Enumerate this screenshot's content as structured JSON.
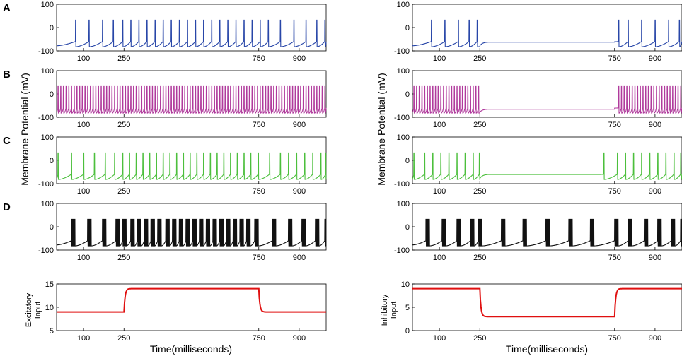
{
  "chart_data": {
    "type": "line",
    "panel_letters": [
      "A",
      "B",
      "C",
      "D"
    ],
    "colors": {
      "A": "#2846a8",
      "B": "#b03a9c",
      "C": "#4cbf3c",
      "D": "#111111",
      "input": "#e01010"
    },
    "membrane": {
      "ylabel": "Membrane Potential (mV)",
      "ylim": [
        -100,
        100
      ],
      "yticks": [
        -100,
        0,
        100
      ],
      "xlim": [
        0,
        1000
      ],
      "xticks": [
        100,
        250,
        750,
        900
      ]
    },
    "input_axes": {
      "xlabel": "Time(milliseconds)",
      "xlim": [
        0,
        1000
      ],
      "xticks": [
        100,
        250,
        750,
        900
      ]
    },
    "left": {
      "rows": [
        {
          "name": "A",
          "spike_times": [
            70,
            120,
            170,
            210,
            245,
            275,
            305,
            335,
            365,
            395,
            425,
            455,
            485,
            515,
            545,
            575,
            605,
            635,
            665,
            695,
            725,
            755,
            785,
            830,
            880,
            925,
            965,
            995
          ]
        },
        {
          "name": "B",
          "spike_period": 10,
          "spike_start": 5,
          "spike_end": 995
        },
        {
          "name": "C",
          "spike_times": [
            5,
            55,
            100,
            140,
            180,
            215,
            245,
            270,
            295,
            320,
            345,
            370,
            395,
            420,
            445,
            470,
            495,
            520,
            545,
            570,
            595,
            620,
            645,
            670,
            695,
            720,
            748,
            790,
            830,
            860,
            890,
            920,
            950,
            980,
            998
          ]
        },
        {
          "name": "D",
          "bursts": [
            55,
            115,
            170,
            220,
            245,
            275,
            300,
            325,
            350,
            375,
            405,
            430,
            455,
            480,
            505,
            530,
            555,
            580,
            605,
            630,
            655,
            680,
            705,
            735,
            800,
            860,
            910,
            960,
            995
          ],
          "spikes_per_burst": 5
        }
      ],
      "input": {
        "label_line1": "Excitatory",
        "label_line2": "Input",
        "ylim": [
          5,
          15
        ],
        "yticks": [
          5,
          10,
          15
        ],
        "low": 9,
        "high": 14,
        "step_on": 250,
        "step_off": 750
      }
    },
    "right": {
      "rows": [
        {
          "name": "A",
          "spike_times": [
            70,
            120,
            170,
            210,
            240,
            765,
            800,
            850,
            900,
            950,
            990
          ],
          "silent_level": -62
        },
        {
          "name": "B",
          "spike_period": 10,
          "spike_start": 5,
          "spike_end": 245,
          "spike_start2": 765,
          "spike_end2": 995,
          "silent_level": -65
        },
        {
          "name": "C",
          "spike_times": [
            5,
            45,
            75,
            105,
            135,
            165,
            195,
            225,
            248,
            710,
            760,
            790,
            820,
            850,
            880,
            910,
            940,
            970,
            995
          ],
          "silent_level": -60
        },
        {
          "name": "D",
          "bursts": [
            50,
            110,
            165,
            215,
            245,
            330,
            410,
            495,
            580,
            660,
            750,
            800,
            860,
            910,
            960,
            995
          ],
          "spikes_per_burst": 5
        }
      ],
      "input": {
        "label_line1": "Inhibitory",
        "label_line2": "Input",
        "ylim": [
          0,
          10
        ],
        "yticks": [
          0,
          5,
          10
        ],
        "high": 9,
        "low": 3,
        "step_on": 250,
        "step_off": 750
      }
    }
  }
}
